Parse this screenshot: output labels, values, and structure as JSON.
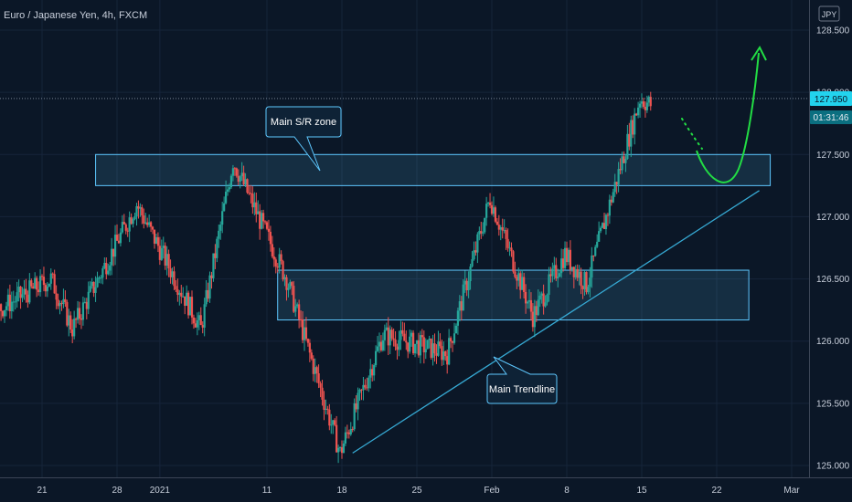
{
  "header": {
    "title": "Euro / Japanese Yen, 4h, FXCM"
  },
  "currency_badge": "JPY",
  "price_label": {
    "value": "127.950",
    "countdown": "01:31:46",
    "color": "#22d3ee"
  },
  "colors": {
    "background": "#0b1727",
    "up": "#26a69a",
    "down": "#ef5350",
    "zone": "#5ec8ff",
    "trendline": "#36a9d3",
    "projection": "#22dd44"
  },
  "annotations": {
    "zone_label": "Main S/R zone",
    "trend_label": "Main Trendline"
  },
  "chart_data": {
    "type": "candlestick",
    "title": "Euro / Japanese Yen, 4h, FXCM",
    "ylim": [
      124.93,
      128.62
    ],
    "y_ticks": [
      "125.000",
      "125.500",
      "126.000",
      "126.500",
      "127.000",
      "127.500",
      "128.000",
      "128.500"
    ],
    "x_ticks": [
      "21",
      "28",
      "2021",
      "11",
      "18",
      "25",
      "Feb",
      "8",
      "15",
      "22",
      "Mar"
    ],
    "current_price": 127.95,
    "key_points": [
      {
        "t": "Dec 14",
        "price": 126.1
      },
      {
        "t": "Dec 22",
        "price": 126.5
      },
      {
        "t": "Dec 24",
        "price": 126.1
      },
      {
        "t": "Dec 30",
        "price": 127.1
      },
      {
        "t": "Jan 5",
        "price": 126.1
      },
      {
        "t": "Jan 8",
        "price": 127.45
      },
      {
        "t": "Jan 13",
        "price": 126.5
      },
      {
        "t": "Jan 18",
        "price": 125.1
      },
      {
        "t": "Jan 22",
        "price": 126.05
      },
      {
        "t": "Jan 28",
        "price": 125.9
      },
      {
        "t": "Feb 1",
        "price": 127.15
      },
      {
        "t": "Feb 5",
        "price": 126.2
      },
      {
        "t": "Feb 8",
        "price": 126.7
      },
      {
        "t": "Feb 10",
        "price": 126.45
      },
      {
        "t": "Feb 15",
        "price": 127.95
      },
      {
        "t": "Feb 16",
        "price": 127.9
      }
    ],
    "zones": [
      {
        "name": "Main S/R zone",
        "from": 127.25,
        "to": 127.5
      },
      {
        "name": "",
        "from": 126.17,
        "to": 126.57
      }
    ],
    "trendline": {
      "name": "Main Trendline",
      "start": 125.1,
      "end": 127.21
    },
    "projection": {
      "low": 127.25,
      "high": 128.33
    }
  }
}
